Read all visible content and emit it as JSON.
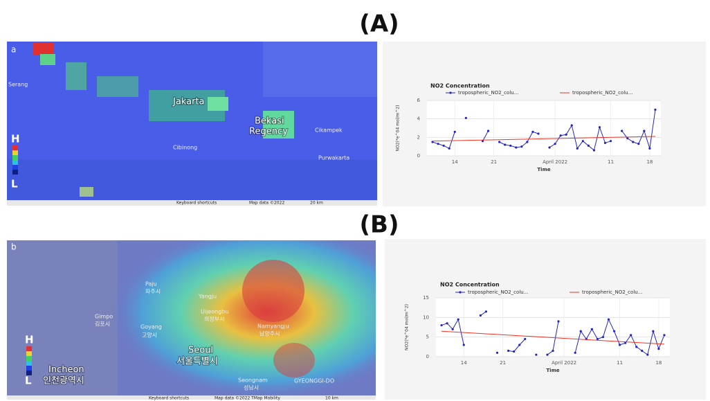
{
  "panels": [
    {
      "label": "(A)",
      "map": {
        "tag": "a",
        "legend_high": "H",
        "legend_low": "L",
        "places": [
          "Serang",
          "Jakarta",
          "Bekasi",
          "Regency",
          "Purwakarta",
          "Cibinong",
          "Cikampek"
        ],
        "footer": [
          "Keyboard shortcuts",
          "Map data ©2022",
          "20 km"
        ]
      }
    },
    {
      "label": "(B)",
      "map": {
        "tag": "b",
        "legend_high": "H",
        "legend_low": "L",
        "places": [
          "Paju",
          "파주시",
          "Gimpo",
          "김포시",
          "Goyang",
          "고양시",
          "Yangju",
          "Uijeongbu",
          "의정부시",
          "Namyangju",
          "남양주시",
          "Seoul",
          "서울특별시",
          "Incheon",
          "인천광역시",
          "Seongnam",
          "성남시",
          "GYEONGGI-DO"
        ],
        "footer": [
          "Keyboard shortcuts",
          "Map data ©2022 TMap Mobility",
          "10 km"
        ]
      }
    }
  ],
  "chart_data": [
    {
      "type": "line",
      "title": "NO2 Concentration",
      "x_label": "Time",
      "y_label": "NO2(*e^04 mol/m^2)",
      "x": [
        "2022-03-10",
        "2022-03-11",
        "2022-03-12",
        "2022-03-13",
        "2022-03-14",
        "2022-03-15",
        "2022-03-16",
        "2022-03-17",
        "2022-03-18",
        "2022-03-19",
        "2022-03-20",
        "2022-03-21",
        "2022-03-22",
        "2022-03-23",
        "2022-03-24",
        "2022-03-25",
        "2022-03-26",
        "2022-03-27",
        "2022-03-28",
        "2022-03-29",
        "2022-03-30",
        "2022-03-31",
        "2022-04-01",
        "2022-04-02",
        "2022-04-03",
        "2022-04-04",
        "2022-04-05",
        "2022-04-06",
        "2022-04-07",
        "2022-04-08",
        "2022-04-09",
        "2022-04-10",
        "2022-04-11",
        "2022-04-12",
        "2022-04-13",
        "2022-04-14",
        "2022-04-15",
        "2022-04-16",
        "2022-04-17",
        "2022-04-18",
        "2022-04-19"
      ],
      "series": [
        {
          "name": "tropospheric_NO2_colu...",
          "color": "#2222cc",
          "show_markers": true,
          "values": [
            1.5,
            1.3,
            1.1,
            0.8,
            2.6,
            null,
            4.1,
            null,
            null,
            1.6,
            2.7,
            null,
            1.5,
            1.2,
            1.1,
            0.9,
            1.0,
            1.5,
            2.6,
            2.4,
            null,
            0.9,
            1.3,
            2.2,
            2.3,
            3.3,
            0.8,
            1.6,
            1.1,
            0.6,
            3.1,
            1.4,
            1.6,
            null,
            2.7,
            1.9,
            1.5,
            1.3,
            2.7,
            0.8,
            5.0
          ]
        },
        {
          "name": "tropospheric_NO2_colu...",
          "color": "#ee3322",
          "show_markers": false,
          "x": [
            "2022-03-10",
            "2022-04-19"
          ],
          "values": [
            1.6,
            2.1
          ]
        }
      ],
      "xlim": [
        "2022-03-09",
        "2022-04-20"
      ],
      "xticks": [
        {
          "value": "2022-03-14",
          "label": "14"
        },
        {
          "value": "2022-03-21",
          "label": "21"
        },
        {
          "value": "2022-04-01",
          "label": "April 2022"
        },
        {
          "value": "2022-04-11",
          "label": "11"
        },
        {
          "value": "2022-04-18",
          "label": "18"
        }
      ],
      "ylim": [
        0,
        6
      ],
      "yticks": [
        0,
        2,
        4,
        6
      ],
      "grid": true
    },
    {
      "type": "line",
      "title": "NO2 Concentration",
      "x_label": "Time",
      "y_label": "NO2(*e^04 mol/m^2)",
      "x": [
        "2022-03-10",
        "2022-03-11",
        "2022-03-12",
        "2022-03-13",
        "2022-03-14",
        "2022-03-15",
        "2022-03-16",
        "2022-03-17",
        "2022-03-18",
        "2022-03-19",
        "2022-03-20",
        "2022-03-21",
        "2022-03-22",
        "2022-03-23",
        "2022-03-24",
        "2022-03-25",
        "2022-03-26",
        "2022-03-27",
        "2022-03-28",
        "2022-03-29",
        "2022-03-30",
        "2022-03-31",
        "2022-04-01",
        "2022-04-02",
        "2022-04-03",
        "2022-04-04",
        "2022-04-05",
        "2022-04-06",
        "2022-04-07",
        "2022-04-08",
        "2022-04-09",
        "2022-04-10",
        "2022-04-11",
        "2022-04-12",
        "2022-04-13",
        "2022-04-14",
        "2022-04-15",
        "2022-04-16",
        "2022-04-17",
        "2022-04-18",
        "2022-04-19"
      ],
      "series": [
        {
          "name": "tropospheric_NO2_colu...",
          "color": "#2222cc",
          "show_markers": true,
          "values": [
            8.0,
            8.5,
            7.0,
            9.5,
            3.0,
            null,
            null,
            10.5,
            11.5,
            null,
            1.0,
            null,
            1.5,
            1.3,
            3.0,
            4.5,
            null,
            0.5,
            null,
            0.5,
            1.5,
            9.0,
            null,
            null,
            1.0,
            6.5,
            4.5,
            7.0,
            4.5,
            5.0,
            9.5,
            6.5,
            3.0,
            3.5,
            5.5,
            2.5,
            1.5,
            0.5,
            6.5,
            2.0,
            5.5
          ]
        },
        {
          "name": "tropospheric_NO2_colu...",
          "color": "#ee3322",
          "show_markers": false,
          "x": [
            "2022-03-10",
            "2022-04-19"
          ],
          "values": [
            6.5,
            3.2
          ]
        }
      ],
      "xlim": [
        "2022-03-09",
        "2022-04-20"
      ],
      "xticks": [
        {
          "value": "2022-03-14",
          "label": "14"
        },
        {
          "value": "2022-03-21",
          "label": "21"
        },
        {
          "value": "2022-04-01",
          "label": "April 2022"
        },
        {
          "value": "2022-04-11",
          "label": "11"
        },
        {
          "value": "2022-04-18",
          "label": "18"
        }
      ],
      "ylim": [
        0,
        15
      ],
      "yticks": [
        0,
        5,
        10,
        15
      ],
      "grid": true
    }
  ]
}
